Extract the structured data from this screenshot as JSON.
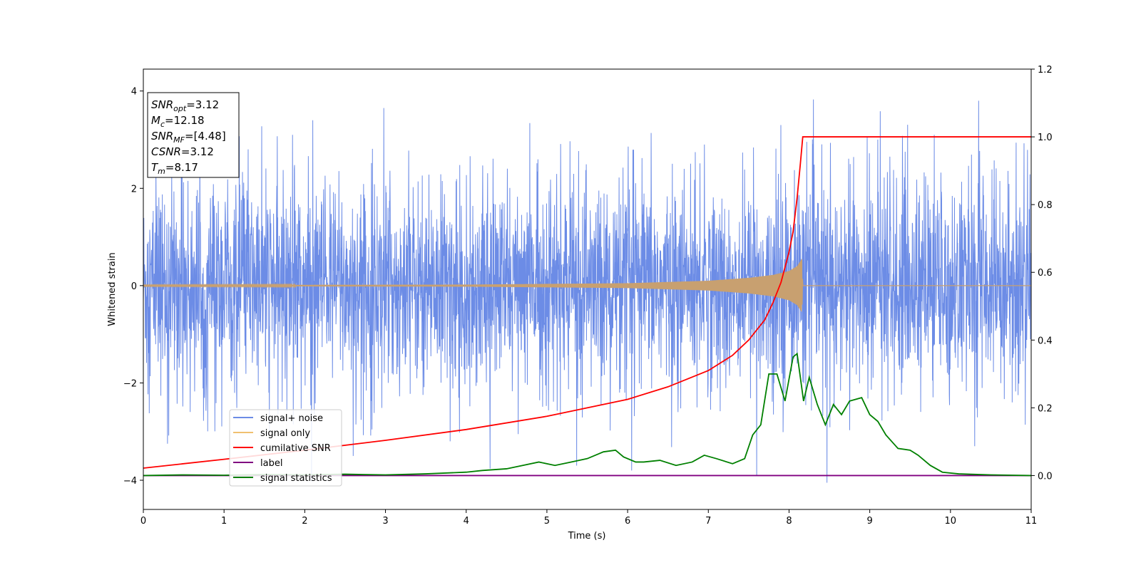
{
  "chart_data": {
    "type": "line",
    "xlabel": "Time (s)",
    "ylabel": "Whitened strain",
    "xlim": [
      0,
      11
    ],
    "ylim_left": [
      -4.6,
      4.45
    ],
    "ylim_right": [
      -0.1,
      1.2
    ],
    "xticks": [
      "0",
      "1",
      "2",
      "3",
      "4",
      "5",
      "6",
      "7",
      "8",
      "9",
      "10",
      "11"
    ],
    "yticks_left": [
      "4",
      "2",
      "0",
      "−2",
      "−4"
    ],
    "yticks_right": [
      "1.2",
      "1.0",
      "0.8",
      "0.6",
      "0.4",
      "0.2",
      "0.0"
    ],
    "grid": false,
    "legend_position": "lower-left",
    "stats_box": [
      {
        "name": "SNR",
        "sub": "opt",
        "value": "=3.12"
      },
      {
        "name": "M",
        "sub": "c",
        "value": "=12.18"
      },
      {
        "name": "SNR",
        "sub": "MF",
        "value": "=[4.48]"
      },
      {
        "name": "CSNR",
        "sub": "",
        "value": "=3.12"
      },
      {
        "name": "T",
        "sub": "m",
        "value": "=8.17"
      }
    ],
    "series": [
      {
        "name": "signal+ noise",
        "color": "#6c8ce6",
        "axis": "left",
        "noise_band": 1.55,
        "peaks": [
          {
            "x": 0.47,
            "y": 2.7
          },
          {
            "x": 1.3,
            "y": 2.8
          },
          {
            "x": 1.85,
            "y": 3.1
          },
          {
            "x": 2.1,
            "y": 3.4
          },
          {
            "x": 2.98,
            "y": 3.65
          },
          {
            "x": 3.8,
            "y": 3.4
          },
          {
            "x": 6.95,
            "y": 2.9
          },
          {
            "x": 7.9,
            "y": 3.3
          },
          {
            "x": 9.1,
            "y": 3.0
          },
          {
            "x": 9.8,
            "y": 3.1
          },
          {
            "x": 10.35,
            "y": 3.8
          },
          {
            "x": 0.3,
            "y": -3.25
          },
          {
            "x": 2.6,
            "y": -3.5
          },
          {
            "x": 3.8,
            "y": -3.2
          },
          {
            "x": 5.37,
            "y": -3.7
          },
          {
            "x": 6.05,
            "y": -3.8
          },
          {
            "x": 7.6,
            "y": -3.9
          },
          {
            "x": 8.47,
            "y": -4.05
          },
          {
            "x": 10.3,
            "y": -3.3
          }
        ]
      },
      {
        "name": "signal only",
        "color": "#f0c070",
        "axis": "left",
        "amplitude": [
          [
            0,
            0.01
          ],
          [
            4,
            0.02
          ],
          [
            6,
            0.05
          ],
          [
            7,
            0.1
          ],
          [
            7.5,
            0.16
          ],
          [
            7.8,
            0.22
          ],
          [
            8.0,
            0.3
          ],
          [
            8.1,
            0.4
          ],
          [
            8.16,
            0.55
          ],
          [
            8.17,
            0
          ]
        ]
      },
      {
        "name": "cumilative SNR",
        "color": "#ff0000",
        "axis": "right",
        "x": [
          0,
          1,
          2,
          3,
          4,
          5,
          6,
          6.5,
          7,
          7.3,
          7.5,
          7.7,
          7.8,
          7.9,
          8.0,
          8.05,
          8.1,
          8.14,
          8.17,
          8.17,
          11
        ],
        "y": [
          0.022,
          0.048,
          0.075,
          0.104,
          0.136,
          0.175,
          0.225,
          0.262,
          0.31,
          0.355,
          0.4,
          0.46,
          0.51,
          0.57,
          0.66,
          0.72,
          0.82,
          0.92,
          1.0,
          1.0,
          1.0
        ]
      },
      {
        "name": "label",
        "color": "#800080",
        "axis": "right",
        "x": [
          0,
          11
        ],
        "y": [
          0.0,
          0.0
        ]
      },
      {
        "name": "signal statistics",
        "color": "#008000",
        "axis": "right",
        "x": [
          0,
          0.5,
          1,
          1.5,
          2,
          2.5,
          3,
          3.5,
          4,
          4.2,
          4.5,
          4.7,
          4.9,
          5.1,
          5.3,
          5.5,
          5.6,
          5.7,
          5.85,
          5.95,
          6.1,
          6.2,
          6.4,
          6.6,
          6.8,
          6.95,
          7.1,
          7.3,
          7.45,
          7.55,
          7.65,
          7.75,
          7.85,
          7.95,
          8.05,
          8.1,
          8.18,
          8.25,
          8.35,
          8.45,
          8.55,
          8.65,
          8.75,
          8.9,
          9.0,
          9.1,
          9.2,
          9.35,
          9.5,
          9.6,
          9.75,
          9.9,
          10.1,
          10.5,
          11
        ],
        "y": [
          0.0,
          0.002,
          0.001,
          0.003,
          0.002,
          0.004,
          0.002,
          0.005,
          0.01,
          0.015,
          0.02,
          0.03,
          0.04,
          0.03,
          0.04,
          0.05,
          0.06,
          0.07,
          0.075,
          0.055,
          0.04,
          0.04,
          0.045,
          0.03,
          0.04,
          0.06,
          0.05,
          0.035,
          0.05,
          0.12,
          0.15,
          0.3,
          0.3,
          0.22,
          0.35,
          0.36,
          0.22,
          0.29,
          0.21,
          0.15,
          0.21,
          0.18,
          0.22,
          0.23,
          0.18,
          0.16,
          0.12,
          0.08,
          0.075,
          0.06,
          0.03,
          0.01,
          0.005,
          0.002,
          0.0
        ]
      }
    ]
  }
}
